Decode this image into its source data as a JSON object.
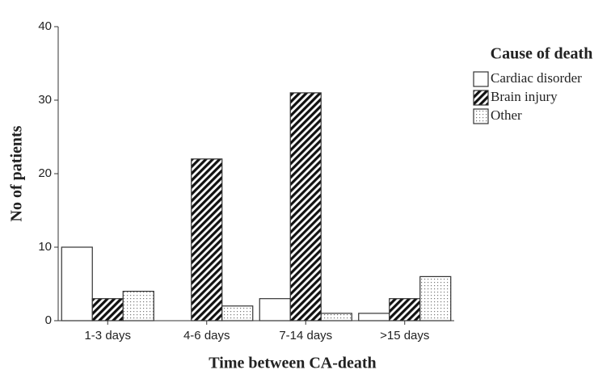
{
  "chart_data": {
    "type": "bar",
    "x_label": "Time between CA-death",
    "y_label": "No of patients",
    "categories": [
      "1-3 days",
      "4-6 days",
      "7-14 days",
      ">15 days"
    ],
    "series": [
      {
        "name": "Cardiac disorder",
        "color": "#ffffff",
        "pattern": "none",
        "values": [
          10,
          0,
          3,
          1
        ]
      },
      {
        "name": "Brain injury",
        "color": "#000000",
        "pattern": "hatch",
        "values": [
          3,
          22,
          31,
          3
        ]
      },
      {
        "name": "Other",
        "color": "#ffffff",
        "pattern": "dots",
        "values": [
          4,
          2,
          1,
          6
        ]
      }
    ],
    "legend_title": "Cause of death",
    "legend": "right",
    "ylim": [
      0,
      40
    ],
    "yticks": [
      0,
      10,
      20,
      30,
      40
    ],
    "grid": false
  }
}
